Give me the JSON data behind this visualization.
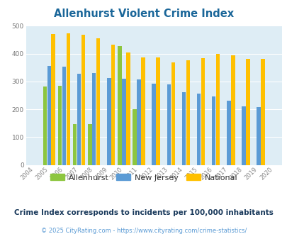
{
  "title": "Allenhurst Violent Crime Index",
  "title_color": "#1a6699",
  "years": [
    2004,
    2005,
    2006,
    2007,
    2008,
    2009,
    2010,
    2011,
    2012,
    2013,
    2014,
    2015,
    2016,
    2017,
    2018,
    2019,
    2020
  ],
  "allenhurst": [
    null,
    282,
    285,
    148,
    148,
    null,
    428,
    201,
    null,
    null,
    null,
    null,
    null,
    null,
    null,
    null,
    null
  ],
  "new_jersey": [
    null,
    355,
    352,
    328,
    330,
    312,
    310,
    308,
    293,
    290,
    262,
    257,
    247,
    231,
    210,
    207,
    null
  ],
  "national": [
    null,
    469,
    474,
    467,
    455,
    432,
    405,
    387,
    387,
    368,
    377,
    383,
    399,
    395,
    380,
    380,
    null
  ],
  "allenhurst_color": "#8dc63f",
  "nj_color": "#5b9bd5",
  "national_color": "#ffc000",
  "bg_color": "#deedf5",
  "ylim": [
    0,
    500
  ],
  "yticks": [
    0,
    100,
    200,
    300,
    400,
    500
  ],
  "bar_width": 0.28,
  "legend_labels": [
    "Allenhurst",
    "New Jersey",
    "National"
  ],
  "footnote1": "Crime Index corresponds to incidents per 100,000 inhabitants",
  "footnote2": "© 2025 CityRating.com - https://www.cityrating.com/crime-statistics/",
  "footnote1_color": "#1a3a5c",
  "footnote2_color": "#5b9bd5"
}
